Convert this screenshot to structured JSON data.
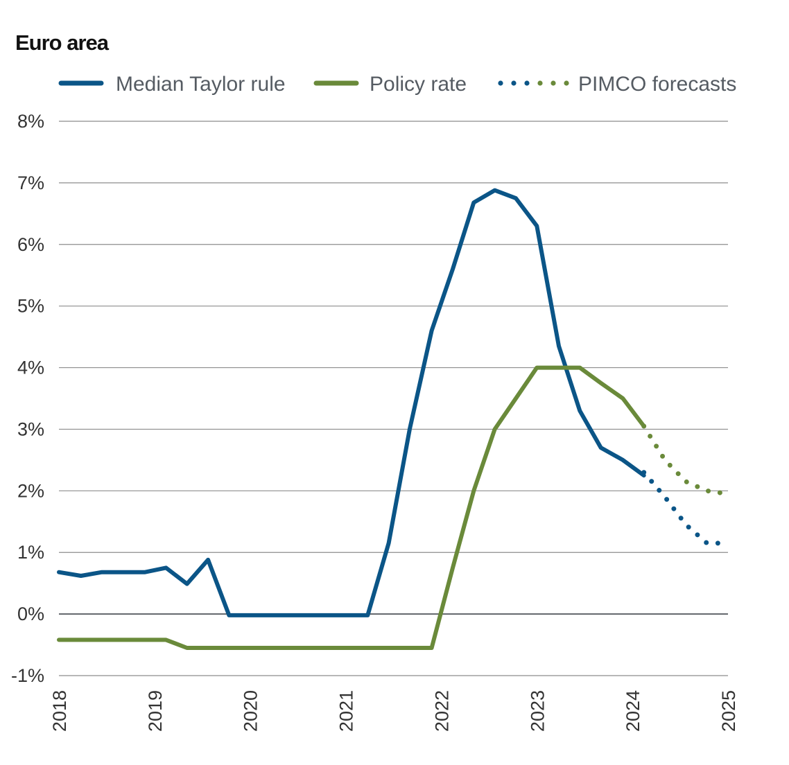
{
  "chart_data": {
    "type": "line",
    "title": "Euro area",
    "x_ticks": [
      "2018",
      "2019",
      "2020",
      "2021",
      "2022",
      "2023",
      "2024",
      "2025"
    ],
    "y_ticks": [
      "8%",
      "7%",
      "6%",
      "5%",
      "4%",
      "3%",
      "2%",
      "1%",
      "0%",
      "-1%"
    ],
    "ylim": [
      -1,
      8
    ],
    "xlim": [
      2018,
      2025
    ],
    "grid": true,
    "legend": [
      {
        "label": "Median Taylor rule",
        "style": "solid",
        "color": "#0b5587"
      },
      {
        "label": "Policy rate",
        "style": "solid",
        "color": "#6a8a3a"
      },
      {
        "label": "PIMCO forecasts",
        "style": "dotted",
        "colors": [
          "#0b5587",
          "#6a8a3a"
        ]
      }
    ],
    "series": [
      {
        "name": "Median Taylor rule",
        "color": "#0b5587",
        "style": "solid",
        "points": [
          [
            2018.0,
            0.68
          ],
          [
            2018.23,
            0.62
          ],
          [
            2018.45,
            0.68
          ],
          [
            2018.67,
            0.68
          ],
          [
            2018.9,
            0.68
          ],
          [
            2019.12,
            0.75
          ],
          [
            2019.34,
            0.49
          ],
          [
            2019.56,
            0.88
          ],
          [
            2019.78,
            -0.02
          ],
          [
            2020.0,
            -0.02
          ],
          [
            2020.5,
            -0.02
          ],
          [
            2021.0,
            -0.02
          ],
          [
            2021.23,
            -0.02
          ],
          [
            2021.45,
            1.15
          ],
          [
            2021.67,
            3.0
          ],
          [
            2021.9,
            4.6
          ],
          [
            2022.12,
            5.6
          ],
          [
            2022.34,
            6.68
          ],
          [
            2022.56,
            6.88
          ],
          [
            2022.78,
            6.75
          ],
          [
            2023.0,
            6.3
          ],
          [
            2023.23,
            4.35
          ],
          [
            2023.45,
            3.3
          ],
          [
            2023.67,
            2.7
          ],
          [
            2023.9,
            2.5
          ],
          [
            2024.12,
            2.25
          ]
        ]
      },
      {
        "name": "Policy rate",
        "color": "#6a8a3a",
        "style": "solid",
        "points": [
          [
            2018.0,
            -0.42
          ],
          [
            2018.5,
            -0.42
          ],
          [
            2019.0,
            -0.42
          ],
          [
            2019.12,
            -0.42
          ],
          [
            2019.34,
            -0.55
          ],
          [
            2019.6,
            -0.55
          ],
          [
            2020.0,
            -0.55
          ],
          [
            2020.5,
            -0.55
          ],
          [
            2021.0,
            -0.55
          ],
          [
            2021.5,
            -0.55
          ],
          [
            2021.9,
            -0.55
          ],
          [
            2022.12,
            0.75
          ],
          [
            2022.34,
            2.0
          ],
          [
            2022.56,
            3.0
          ],
          [
            2022.78,
            3.5
          ],
          [
            2023.0,
            4.0
          ],
          [
            2023.23,
            4.0
          ],
          [
            2023.45,
            4.0
          ],
          [
            2023.67,
            3.75
          ],
          [
            2023.9,
            3.5
          ],
          [
            2024.12,
            3.05
          ]
        ]
      },
      {
        "name": "Median Taylor rule forecast",
        "color": "#0b5587",
        "style": "dotted",
        "points": [
          [
            2024.12,
            2.3
          ],
          [
            2024.34,
            1.9
          ],
          [
            2024.56,
            1.45
          ],
          [
            2024.78,
            1.15
          ],
          [
            2025.0,
            1.15
          ]
        ]
      },
      {
        "name": "Policy rate forecast",
        "color": "#6a8a3a",
        "style": "dotted",
        "points": [
          [
            2024.12,
            3.05
          ],
          [
            2024.34,
            2.5
          ],
          [
            2024.56,
            2.15
          ],
          [
            2024.78,
            2.0
          ],
          [
            2025.0,
            1.95
          ]
        ]
      }
    ]
  }
}
